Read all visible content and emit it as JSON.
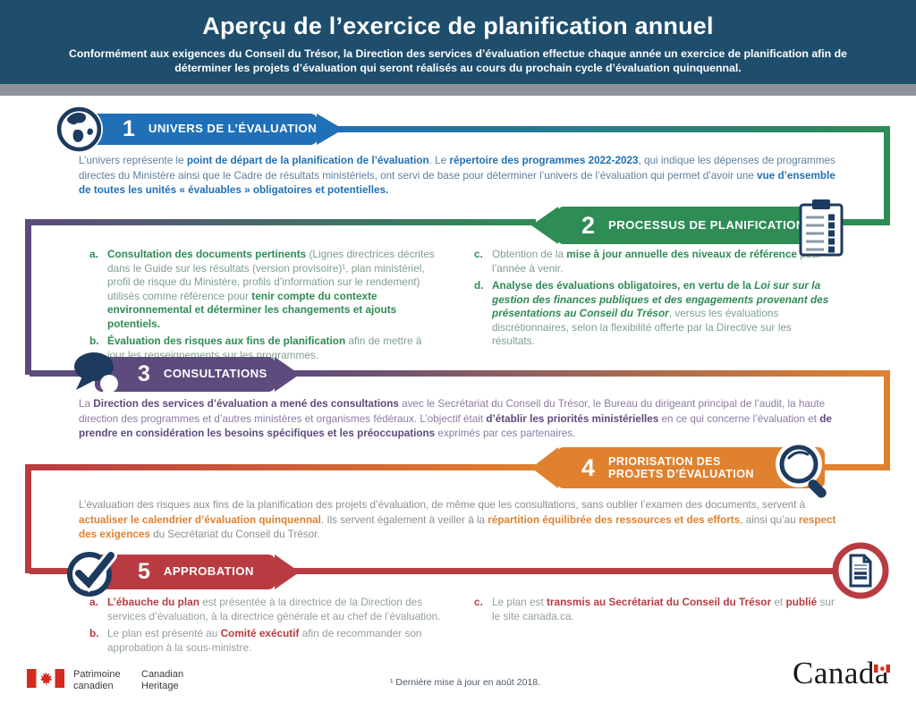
{
  "header": {
    "title": "Aperçu de l’exercice de planification annuel",
    "subtitle": "Conformément aux exigences du Conseil du Trésor, la Direction des services d’évaluation effectue chaque année un exercice de planification afin de déterminer les projets d’évaluation qui seront réalisés au cours du prochain cycle d’évaluation quinquennal.",
    "bg_color": "#1F4E6D",
    "divider_color": "#8D9399"
  },
  "colors": {
    "blue": "#1F70B7",
    "green": "#2E8C55",
    "purple": "#5D4B7D",
    "orange": "#E0812F",
    "red": "#B93B42",
    "navy_icon": "#1D3A5F"
  },
  "steps": [
    {
      "number": "1",
      "label": "UNIVERS DE L’ÉVALUATION",
      "icon": "globe-icon",
      "color": "#1F70B7",
      "paragraph": [
        {
          "t": "L’univers représente le "
        },
        {
          "t": "point de départ de la planification de l’évaluation",
          "b": true
        },
        {
          "t": ". Le "
        },
        {
          "t": "répertoire des programmes 2022-2023",
          "b": true
        },
        {
          "t": ", qui indique les dépenses de programmes directes du Ministère ainsi que le Cadre de résultats ministériels, ont servi de base pour déterminer l’univers de l’évaluation qui permet d’avoir une "
        },
        {
          "t": "vue d’ensemble de toutes les unités « évaluables » obligatoires et potentielles.",
          "b": true
        }
      ]
    },
    {
      "number": "2",
      "label": "PROCESSUS DE PLANIFICATION",
      "icon": "clipboard-icon",
      "color": "#2E8C55",
      "items_left": [
        {
          "prefix": "a.",
          "segments": [
            {
              "t": "Consultation des documents pertinents",
              "b": true
            },
            {
              "t": " (Lignes directrices décrites dans le Guide sur les résultats (version provisoire)¹, plan ministériel, profil de risque du Ministère, profils d’information sur le rendement) utilisés comme référence pour "
            },
            {
              "t": "tenir compte du contexte environnemental et déterminer les changements et ajouts potentiels.",
              "b": true
            }
          ]
        },
        {
          "prefix": "b.",
          "segments": [
            {
              "t": "Évaluation des risques aux fins de planification",
              "b": true
            },
            {
              "t": " afin de mettre à jour les renseignements sur les programmes."
            }
          ]
        }
      ],
      "items_right": [
        {
          "prefix": "c.",
          "segments": [
            {
              "t": "Obtention de la "
            },
            {
              "t": "mise à jour annuelle des niveaux de référence",
              "b": true
            },
            {
              "t": " pour l’année à venir."
            }
          ]
        },
        {
          "prefix": "d.",
          "segments": [
            {
              "t": "Analyse des évaluations obligatoires, en vertu de la ",
              "b": true
            },
            {
              "t": "Loi sur sur la gestion des finances publiques et des engagements provenant des présentations au Conseil du Trésor",
              "b": true,
              "i": true
            },
            {
              "t": ", versus les évaluations discrétionnaires, selon la flexibilité offerte par la Directive sur les résultats."
            }
          ]
        }
      ]
    },
    {
      "number": "3",
      "label": "CONSULTATIONS",
      "icon": "speech-bubbles-icon",
      "color": "#5D4B7D",
      "paragraph": [
        {
          "t": "La "
        },
        {
          "t": "Direction des services d’évaluation a mené des consultations",
          "b": true
        },
        {
          "t": " avec le Secrétariat du Conseil du Trésor, le Bureau du dirigeant principal de l’audit, la haute direction des programmes et d’autres ministères et organismes fédéraux. L’objectif était "
        },
        {
          "t": "d’établir les priorités ministérielles",
          "b": true
        },
        {
          "t": " en ce qui concerne l’évaluation et "
        },
        {
          "t": "de prendre en considération les besoins spécifiques et les préoccupations",
          "b": true
        },
        {
          "t": " exprimés par ces partenaires."
        }
      ]
    },
    {
      "number": "4",
      "label": "PRIORISATION DES PROJETS D’ÉVALUATION",
      "label_lines": [
        "PRIORISATION DES",
        "PROJETS D’ÉVALUATION"
      ],
      "icon": "magnifier-icon",
      "color": "#E0812F",
      "paragraph": [
        {
          "t": "L’évaluation des risques aux fins de la planification des projets d’évaluation, de même que les consultations, sans oublier l’examen des documents, servent à "
        },
        {
          "t": "actualiser le calendrier d’évaluation quinquennal",
          "b": true
        },
        {
          "t": ". Ils servent également à veiller à la "
        },
        {
          "t": "répartition équilibrée des ressources et des efforts",
          "b": true
        },
        {
          "t": ", ainsi qu’au "
        },
        {
          "t": "respect des exigences",
          "b": true
        },
        {
          "t": " du Secrétariat du Conseil du Trésor."
        }
      ]
    },
    {
      "number": "5",
      "label": "APPROBATION",
      "icon": "checkmark-icon",
      "end_icon": "document-icon",
      "color": "#B93B42",
      "items_left": [
        {
          "prefix": "a.",
          "segments": [
            {
              "t": "L’ébauche du plan",
              "b": true
            },
            {
              "t": " est présentée à la directrice de la Direction des services d’évaluation, à la directrice générale et au chef de l’évaluation."
            }
          ]
        },
        {
          "prefix": "b.",
          "segments": [
            {
              "t": "Le plan est présenté au "
            },
            {
              "t": "Comité exécutif",
              "b": true
            },
            {
              "t": " afin de recommander son approbation à la sous-ministre."
            }
          ]
        }
      ],
      "items_right": [
        {
          "prefix": "c.",
          "segments": [
            {
              "t": "Le plan est "
            },
            {
              "t": "transmis au Secrétariat du Conseil du Trésor",
              "b": true
            },
            {
              "t": " et "
            },
            {
              "t": "publié",
              "b": true
            },
            {
              "t": " sur le site canada.ca."
            }
          ]
        }
      ]
    }
  ],
  "footer": {
    "dept_fr_line1": "Patrimoine",
    "dept_fr_line2": "canadien",
    "dept_en_line1": "Canadian",
    "dept_en_line2": "Heritage",
    "footnote": "¹ Dernière mise à jour en août 2018.",
    "wordmark": "Canada",
    "flag_icon": "canada-flag-icon"
  }
}
